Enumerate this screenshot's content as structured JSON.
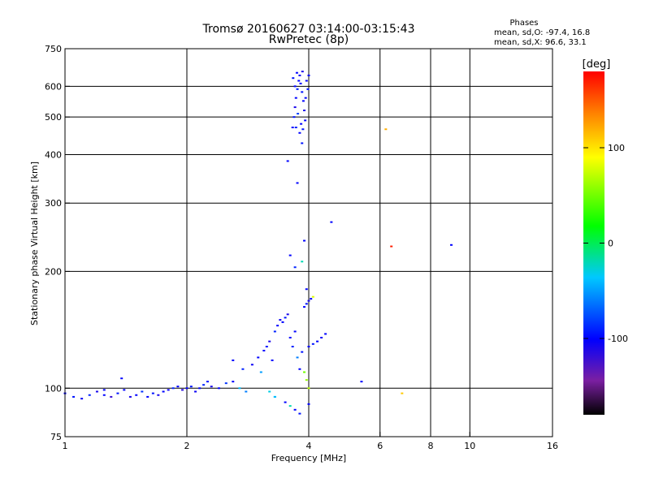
{
  "chart_data": {
    "type": "scatter",
    "title": "Tromsø 20160627 03:14:00-03:15:43",
    "subtitle": "RwPretec (8p)",
    "xlabel": "Frequency [MHz]",
    "ylabel": "Stationary phase Virtual Height [km]",
    "xscale": "log",
    "yscale": "log",
    "xlim": [
      1,
      16
    ],
    "ylim": [
      75,
      750
    ],
    "xticks": [
      1,
      2,
      4,
      6,
      8,
      10,
      16
    ],
    "xtick_labels": [
      "1",
      "2",
      "4",
      "6",
      "8",
      "10",
      "16"
    ],
    "yticks": [
      75,
      100,
      200,
      300,
      400,
      500,
      600,
      750
    ],
    "ytick_labels": [
      "75",
      "100",
      "200",
      "300",
      "400",
      "500",
      "600",
      "750"
    ],
    "grid": true,
    "color_scale": {
      "label": "[deg]",
      "min": -180,
      "max": 180,
      "ticks": [
        100,
        0,
        -100
      ],
      "tick_labels": [
        "100",
        "0",
        "-100"
      ],
      "colormap": "rainbow (black-purple-blue-cyan-green-yellow-red)"
    },
    "phases": {
      "title": "Phases",
      "o_label": "mean, sd,O: -97.4, 16.8",
      "x_label": "mean, sd,X:  96.6, 33.1"
    },
    "points": [
      [
        1.0,
        97,
        -100
      ],
      [
        1.05,
        95,
        -95
      ],
      [
        1.1,
        94,
        -105
      ],
      [
        1.15,
        96,
        -90
      ],
      [
        1.2,
        98,
        -110
      ],
      [
        1.25,
        96,
        -100
      ],
      [
        1.3,
        95,
        -120
      ],
      [
        1.35,
        97,
        -95
      ],
      [
        1.4,
        99,
        -100
      ],
      [
        1.45,
        95,
        -110
      ],
      [
        1.5,
        96,
        -100
      ],
      [
        1.55,
        98,
        -85
      ],
      [
        1.6,
        95,
        -100
      ],
      [
        1.65,
        97,
        -95
      ],
      [
        1.7,
        96,
        -110
      ],
      [
        1.75,
        98,
        -100
      ],
      [
        1.8,
        99,
        -105
      ],
      [
        1.85,
        100,
        -90
      ],
      [
        1.9,
        101,
        -100
      ],
      [
        1.95,
        99,
        -115
      ],
      [
        2.0,
        100,
        -100
      ],
      [
        2.05,
        101,
        -95
      ],
      [
        2.1,
        98,
        -105
      ],
      [
        2.15,
        100,
        -100
      ],
      [
        2.2,
        102,
        -90
      ],
      [
        2.3,
        101,
        -110
      ],
      [
        2.4,
        100,
        -100
      ],
      [
        2.5,
        103,
        -85
      ],
      [
        2.6,
        104,
        -100
      ],
      [
        2.7,
        100,
        -40
      ],
      [
        2.8,
        98,
        -60
      ],
      [
        1.38,
        106,
        -100
      ],
      [
        2.25,
        104,
        -95
      ],
      [
        1.25,
        99,
        -100
      ],
      [
        2.6,
        118,
        -100
      ],
      [
        2.75,
        112,
        -90
      ],
      [
        2.9,
        115,
        -105
      ],
      [
        3.0,
        120,
        -100
      ],
      [
        3.05,
        110,
        -50
      ],
      [
        3.1,
        125,
        -100
      ],
      [
        3.15,
        128,
        -95
      ],
      [
        3.2,
        132,
        -110
      ],
      [
        3.25,
        118,
        -100
      ],
      [
        3.3,
        140,
        -90
      ],
      [
        3.35,
        145,
        -100
      ],
      [
        3.4,
        150,
        -105
      ],
      [
        3.45,
        148,
        -100
      ],
      [
        3.5,
        152,
        -95
      ],
      [
        3.55,
        155,
        -110
      ],
      [
        3.6,
        135,
        -100
      ],
      [
        3.65,
        128,
        -90
      ],
      [
        3.7,
        140,
        -100
      ],
      [
        3.75,
        120,
        -60
      ],
      [
        3.8,
        112,
        -100
      ],
      [
        3.85,
        124,
        -95
      ],
      [
        3.9,
        162,
        -100
      ],
      [
        3.95,
        165,
        -95
      ],
      [
        4.0,
        168,
        -110
      ],
      [
        4.05,
        170,
        -100
      ],
      [
        3.95,
        180,
        -100
      ],
      [
        4.0,
        128,
        -100
      ],
      [
        4.1,
        130,
        -95
      ],
      [
        4.2,
        132,
        -100
      ],
      [
        4.3,
        135,
        -105
      ],
      [
        4.4,
        138,
        -100
      ],
      [
        3.2,
        98,
        -30
      ],
      [
        3.3,
        95,
        -45
      ],
      [
        3.5,
        92,
        -100
      ],
      [
        3.6,
        90,
        -20
      ],
      [
        3.7,
        88,
        -100
      ],
      [
        3.8,
        86,
        -95
      ],
      [
        4.0,
        91,
        -100
      ],
      [
        3.95,
        105,
        60
      ],
      [
        3.9,
        110,
        50
      ],
      [
        4.0,
        100,
        70
      ],
      [
        4.1,
        172,
        80
      ],
      [
        3.3,
        95,
        -40
      ],
      [
        3.65,
        470,
        -100
      ],
      [
        3.68,
        500,
        -95
      ],
      [
        3.7,
        530,
        -110
      ],
      [
        3.72,
        560,
        -100
      ],
      [
        3.75,
        590,
        -90
      ],
      [
        3.78,
        620,
        -100
      ],
      [
        3.8,
        640,
        -105
      ],
      [
        3.82,
        610,
        -100
      ],
      [
        3.85,
        580,
        -95
      ],
      [
        3.88,
        550,
        -100
      ],
      [
        3.9,
        520,
        -110
      ],
      [
        3.92,
        490,
        -100
      ],
      [
        3.87,
        465,
        -95
      ],
      [
        3.83,
        480,
        -100
      ],
      [
        3.76,
        510,
        -80
      ],
      [
        3.7,
        600,
        -100
      ],
      [
        3.66,
        630,
        -95
      ],
      [
        3.74,
        650,
        -100
      ],
      [
        3.86,
        655,
        -110
      ],
      [
        3.95,
        620,
        -100
      ],
      [
        3.98,
        590,
        -95
      ],
      [
        4.0,
        640,
        -100
      ],
      [
        3.93,
        560,
        -100
      ],
      [
        3.8,
        455,
        -100
      ],
      [
        3.72,
        470,
        -90
      ],
      [
        3.55,
        385,
        -100
      ],
      [
        3.85,
        428,
        -95
      ],
      [
        3.75,
        338,
        -100
      ],
      [
        3.9,
        240,
        -100
      ],
      [
        3.85,
        212,
        -20
      ],
      [
        3.6,
        220,
        -100
      ],
      [
        3.7,
        205,
        -90
      ],
      [
        4.55,
        268,
        -100
      ],
      [
        5.4,
        104,
        -100
      ],
      [
        6.2,
        465,
        120
      ],
      [
        6.4,
        232,
        170
      ],
      [
        6.8,
        97,
        110
      ],
      [
        9.0,
        234,
        -100
      ]
    ]
  }
}
